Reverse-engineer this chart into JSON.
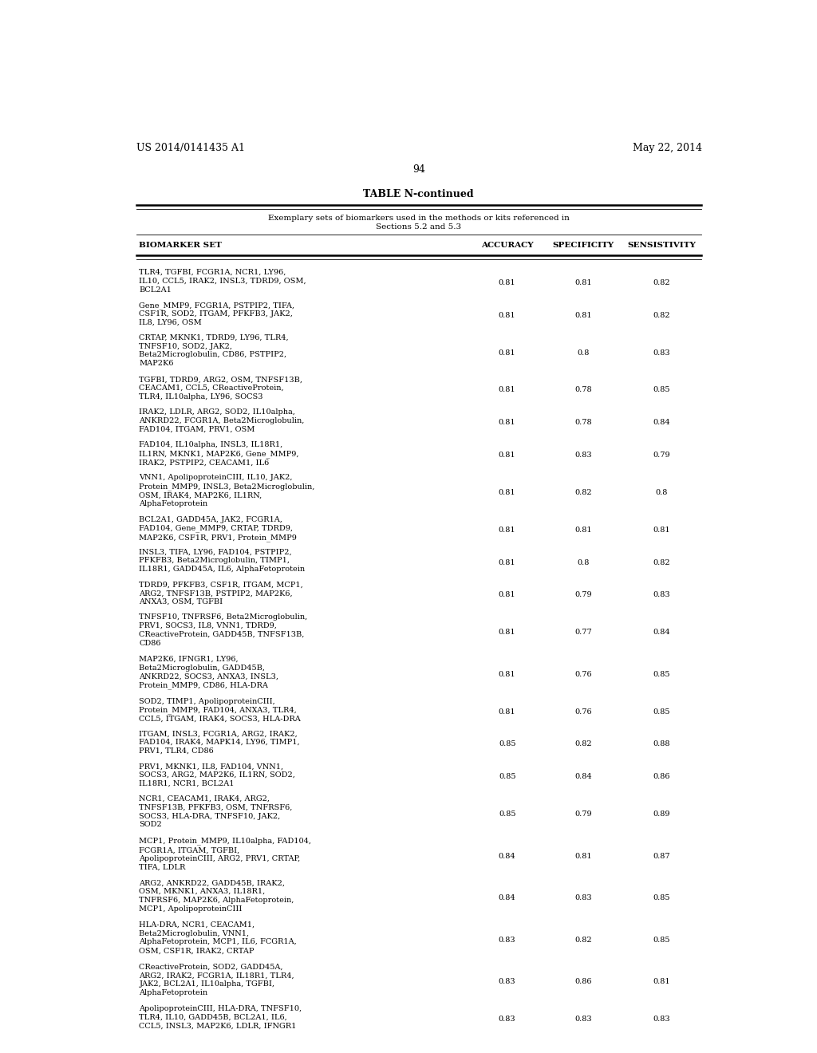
{
  "header_left": "US 2014/0141435 A1",
  "header_right": "May 22, 2014",
  "page_number": "94",
  "table_title": "TABLE N-continued",
  "subtitle1": "Exemplary sets of biomarkers used in the methods or kits referenced in",
  "subtitle2": "Sections 5.2 and 5.3",
  "col_headers": [
    "BIOMARKER SET",
    "ACCURACY",
    "SPECIFICITY",
    "SENSISTIVITY"
  ],
  "rows": [
    [
      "TLR4, TGFBI, FCGR1A, NCR1, LY96,\nIL10, CCL5, IRAK2, INSL3, TDRD9, OSM,\nBCL2A1",
      "0.81",
      "0.81",
      "0.82"
    ],
    [
      "Gene_MMP9, FCGR1A, PSTPIP2, TIFA,\nCSF1R, SOD2, ITGAM, PFKFB3, JAK2,\nIL8, LY96, OSM",
      "0.81",
      "0.81",
      "0.82"
    ],
    [
      "CRTAP, MKNK1, TDRD9, LY96, TLR4,\nTNFSF10, SOD2, JAK2,\nBeta2Microglobulin, CD86, PSTPIP2,\nMAP2K6",
      "0.81",
      "0.8",
      "0.83"
    ],
    [
      "TGFBI, TDRD9, ARG2, OSM, TNFSF13B,\nCEACAM1, CCL5, CReactiveProtein,\nTLR4, IL10alpha, LY96, SOCS3",
      "0.81",
      "0.78",
      "0.85"
    ],
    [
      "IRAK2, LDLR, ARG2, SOD2, IL10alpha,\nANKRD22, FCGR1A, Beta2Microglobulin,\nFAD104, ITGAM, PRV1, OSM",
      "0.81",
      "0.78",
      "0.84"
    ],
    [
      "FAD104, IL10alpha, INSL3, IL18R1,\nIL1RN, MKNK1, MAP2K6, Gene_MMP9,\nIRAK2, PSTPIP2, CEACAM1, IL6",
      "0.81",
      "0.83",
      "0.79"
    ],
    [
      "VNN1, ApolipoproteinCIII, IL10, JAK2,\nProtein_MMP9, INSL3, Beta2Microglobulin,\nOSM, IRAK4, MAP2K6, IL1RN,\nAlphaFetoprotein",
      "0.81",
      "0.82",
      "0.8"
    ],
    [
      "BCL2A1, GADD45A, JAK2, FCGR1A,\nFAD104, Gene_MMP9, CRTAP, TDRD9,\nMAP2K6, CSF1R, PRV1, Protein_MMP9",
      "0.81",
      "0.81",
      "0.81"
    ],
    [
      "INSL3, TIFA, LY96, FAD104, PSTPIP2,\nPFKFB3, Beta2Microglobulin, TIMP1,\nIL18R1, GADD45A, IL6, AlphaFetoprotein",
      "0.81",
      "0.8",
      "0.82"
    ],
    [
      "TDRD9, PFKFB3, CSF1R, ITGAM, MCP1,\nARG2, TNFSF13B, PSTPIP2, MAP2K6,\nANXA3, OSM, TGFBI",
      "0.81",
      "0.79",
      "0.83"
    ],
    [
      "TNFSF10, TNFRSF6, Beta2Microglobulin,\nPRV1, SOCS3, IL8, VNN1, TDRD9,\nCReactiveProtein, GADD45B, TNFSF13B,\nCD86",
      "0.81",
      "0.77",
      "0.84"
    ],
    [
      "MAP2K6, IFNGR1, LY96,\nBeta2Microglobulin, GADD45B,\nANKRD22, SOCS3, ANXA3, INSL3,\nProtein_MMP9, CD86, HLA-DRA",
      "0.81",
      "0.76",
      "0.85"
    ],
    [
      "SOD2, TIMP1, ApolipoproteinCIII,\nProtein_MMP9, FAD104, ANXA3, TLR4,\nCCL5, ITGAM, IRAK4, SOCS3, HLA-DRA",
      "0.81",
      "0.76",
      "0.85"
    ],
    [
      "ITGAM, INSL3, FCGR1A, ARG2, IRAK2,\nFAD104, IRAK4, MAPK14, LY96, TIMP1,\nPRV1, TLR4, CD86",
      "0.85",
      "0.82",
      "0.88"
    ],
    [
      "PRV1, MKNK1, IL8, FAD104, VNN1,\nSOCS3, ARG2, MAP2K6, IL1RN, SOD2,\nIL18R1, NCR1, BCL2A1",
      "0.85",
      "0.84",
      "0.86"
    ],
    [
      "NCR1, CEACAM1, IRAK4, ARG2,\nTNFSF13B, PFKFB3, OSM, TNFRSF6,\nSOCS3, HLA-DRA, TNFSF10, JAK2,\nSOD2",
      "0.85",
      "0.79",
      "0.89"
    ],
    [
      "MCP1, Protein_MMP9, IL10alpha, FAD104,\nFCGR1A, ITGAM, TGFBI,\nApolipoproteinCIII, ARG2, PRV1, CRTAP,\nTIFA, LDLR",
      "0.84",
      "0.81",
      "0.87"
    ],
    [
      "ARG2, ANKRD22, GADD45B, IRAK2,\nOSM, MKNK1, ANXA3, IL18R1,\nTNFRSF6, MAP2K6, AlphaFetoprotein,\nMCP1, ApolipoproteinCIII",
      "0.84",
      "0.83",
      "0.85"
    ],
    [
      "HLA-DRA, NCR1, CEACAM1,\nBeta2Microglobulin, VNN1,\nAlphaFetoprotein, MCP1, IL6, FCGR1A,\nOSM, CSF1R, IRAK2, CRTAP",
      "0.83",
      "0.82",
      "0.85"
    ],
    [
      "CReactiveProtein, SOD2, GADD45A,\nARG2, IRAK2, FCGR1A, IL18R1, TLR4,\nJAK2, BCL2A1, IL10alpha, TGFBI,\nAlphaFetoprotein",
      "0.83",
      "0.86",
      "0.81"
    ],
    [
      "ApolipoproteinCIII, HLA-DRA, TNFSF10,\nTLR4, IL10, GADD45B, BCL2A1, IL6,\nCCL5, INSL3, MAP2K6, LDLR, IFNGR1",
      "0.83",
      "0.83",
      "0.83"
    ]
  ]
}
